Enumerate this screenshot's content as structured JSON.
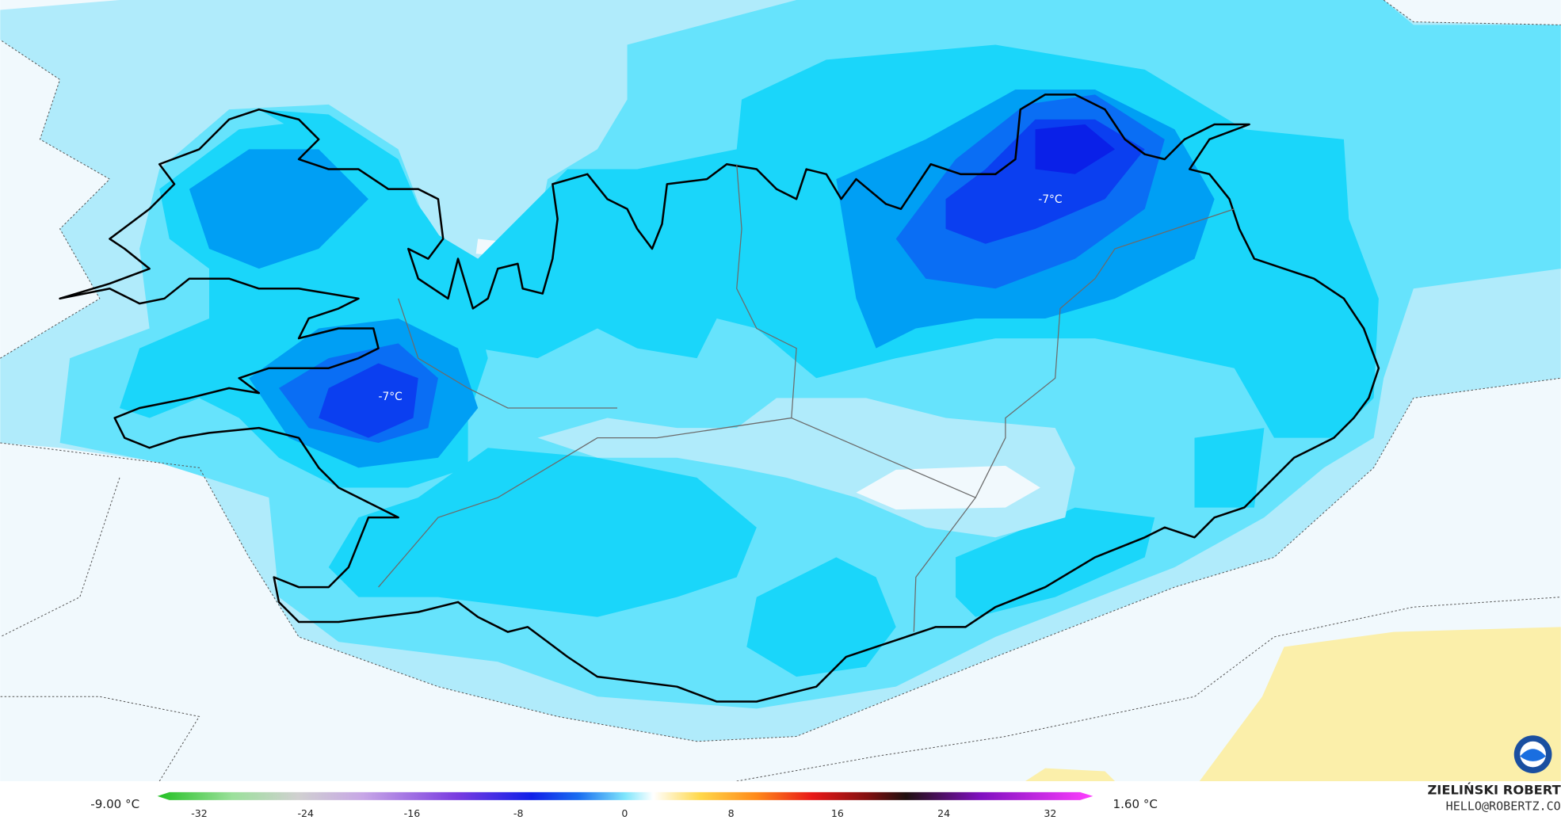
{
  "map_labels": [
    "-7°C",
    "-7°C"
  ],
  "legend": {
    "min_label": "-9.00 °C",
    "max_label": "1.60 °C",
    "ticks": [
      -32,
      -24,
      -16,
      -8,
      0,
      8,
      16,
      24,
      32
    ]
  },
  "credit": {
    "name": "ZIELIŃSKI ROBERT",
    "email": "HELLO@ROBERTZ.CO"
  }
}
